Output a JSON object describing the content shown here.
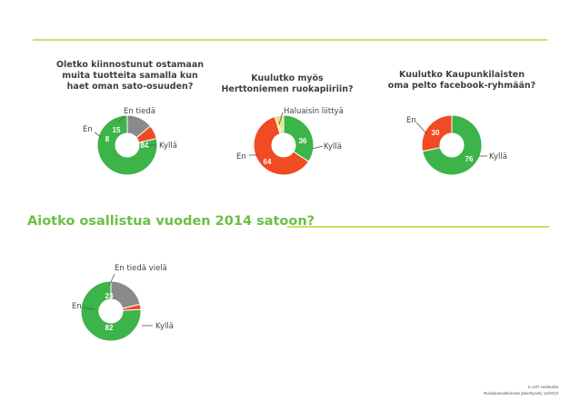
{
  "colors": {
    "rule": "#c5e06b",
    "green": "#3cb449",
    "red": "#f04b23",
    "gray": "#8a8a8a",
    "yellow": "#e5e27a",
    "title": "#6cbf45"
  },
  "questions": [
    {
      "lines": [
        "Oletko kiinnostunut ostamaan",
        "muita tuotteita samalla kun",
        "haet oman sato-osuuden?"
      ]
    },
    {
      "lines": [
        "Kuulutko myös",
        "Herttoniemen ruokapiiriin?"
      ]
    },
    {
      "lines": [
        "Kuulutko Kaupunkilaisten",
        "oma pelto facebook-ryhmään?"
      ]
    }
  ],
  "section_title": "Aiotko osallistua vuoden 2014 satoon?",
  "footer": {
    "line1": "n=107 vastausta",
    "line2": "Ruokaosuuskunnan jäsenkysely 12/2013"
  },
  "chart_data": [
    {
      "type": "pie",
      "slices": [
        {
          "name": "Kyllä",
          "value": 84,
          "color": "#3cb449"
        },
        {
          "name": "En",
          "value": 8,
          "color": "#f04b23"
        },
        {
          "name": "En tiedä",
          "value": 15,
          "color": "#8a8a8a"
        }
      ]
    },
    {
      "type": "pie",
      "slices": [
        {
          "name": "Kyllä",
          "value": 36,
          "color": "#3cb449"
        },
        {
          "name": "En",
          "value": 64,
          "color": "#f04b23"
        },
        {
          "name": "Haluaisin liittyä",
          "value": 5,
          "color": "#e5e27a"
        }
      ]
    },
    {
      "type": "pie",
      "slices": [
        {
          "name": "Kyllä",
          "value": 76,
          "color": "#3cb449"
        },
        {
          "name": "En",
          "value": 30,
          "color": "#f04b23"
        }
      ]
    },
    {
      "type": "pie",
      "slices": [
        {
          "name": "Kyllä",
          "value": 82,
          "color": "#3cb449"
        },
        {
          "name": "En",
          "value": 3,
          "color": "#f04b23"
        },
        {
          "name": "En tiedä vielä",
          "value": 23,
          "color": "#8a8a8a"
        }
      ]
    }
  ]
}
